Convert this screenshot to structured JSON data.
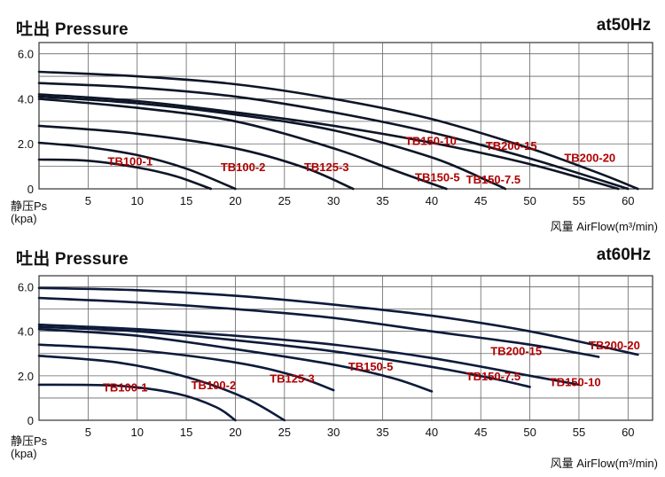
{
  "chart_data": [
    {
      "type": "line",
      "title": "吐出 Pressure",
      "frequency": "at50Hz",
      "ylabel": "静压Ps",
      "yunit": "(kpa)",
      "xlabel": "风量 AirFlow(m³/min)",
      "xlim": [
        0,
        62.5
      ],
      "ylim": [
        0,
        6.5
      ],
      "xticks": [
        5,
        10,
        15,
        20,
        25,
        30,
        35,
        40,
        45,
        50,
        55,
        60
      ],
      "yticks": [
        0,
        2.0,
        4.0,
        6.0
      ],
      "ytick_labels": [
        "0",
        "2.0",
        "4.0",
        "6.0"
      ],
      "grid": true,
      "series": [
        {
          "name": "TB100-1",
          "color": "#0d1526",
          "label_at": [
            7,
            1.2
          ],
          "points": [
            [
              0,
              1.3
            ],
            [
              5,
              1.25
            ],
            [
              10,
              0.95
            ],
            [
              14,
              0.55
            ],
            [
              17.5,
              0
            ]
          ]
        },
        {
          "name": "TB100-2",
          "color": "#0d1526",
          "label_at": [
            18.5,
            0.95
          ],
          "points": [
            [
              0,
              2.05
            ],
            [
              5,
              1.85
            ],
            [
              10,
              1.5
            ],
            [
              15,
              0.9
            ],
            [
              20,
              0
            ]
          ]
        },
        {
          "name": "TB125-3",
          "color": "#0d1526",
          "label_at": [
            27,
            0.95
          ],
          "points": [
            [
              0,
              2.8
            ],
            [
              10,
              2.45
            ],
            [
              20,
              1.8
            ],
            [
              27,
              0.95
            ],
            [
              32,
              0
            ]
          ]
        },
        {
          "name": "TB150-5",
          "color": "#0d1526",
          "label_at": [
            38.3,
            0.5
          ],
          "points": [
            [
              0,
              4.0
            ],
            [
              10,
              3.6
            ],
            [
              20,
              3.0
            ],
            [
              30,
              1.8
            ],
            [
              36,
              0.85
            ],
            [
              41.5,
              0
            ]
          ]
        },
        {
          "name": "TB150-7.5",
          "color": "#0d1526",
          "label_at": [
            43.5,
            0.4
          ],
          "points": [
            [
              0,
              4.1
            ],
            [
              10,
              3.8
            ],
            [
              20,
              3.3
            ],
            [
              30,
              2.6
            ],
            [
              40,
              1.4
            ],
            [
              46,
              0.3
            ],
            [
              47.5,
              0
            ]
          ]
        },
        {
          "name": "TB150-10",
          "color": "#0d1526",
          "label_at": [
            37.3,
            2.1
          ],
          "points": [
            [
              0,
              4.2
            ],
            [
              10,
              3.9
            ],
            [
              20,
              3.4
            ],
            [
              30,
              2.8
            ],
            [
              40,
              2.05
            ],
            [
              50,
              1.1
            ],
            [
              59,
              0
            ]
          ]
        },
        {
          "name": "TB200-15",
          "color": "#0d1526",
          "label_at": [
            45.5,
            1.9
          ],
          "points": [
            [
              0,
              4.7
            ],
            [
              10,
              4.5
            ],
            [
              20,
              4.1
            ],
            [
              30,
              3.4
            ],
            [
              40,
              2.5
            ],
            [
              50,
              1.35
            ],
            [
              60,
              0
            ]
          ]
        },
        {
          "name": "TB200-20",
          "color": "#0d1526",
          "label_at": [
            53.5,
            1.35
          ],
          "points": [
            [
              0,
              5.2
            ],
            [
              10,
              5.0
            ],
            [
              20,
              4.65
            ],
            [
              30,
              4.0
            ],
            [
              40,
              3.1
            ],
            [
              50,
              1.8
            ],
            [
              57,
              0.7
            ],
            [
              61,
              0
            ]
          ]
        }
      ]
    },
    {
      "type": "line",
      "title": "吐出 Pressure",
      "frequency": "at60Hz",
      "ylabel": "静压Ps",
      "yunit": "(kpa)",
      "xlabel": "风量 AirFlow(m³/min)",
      "xlim": [
        0,
        62.5
      ],
      "ylim": [
        0,
        6.5
      ],
      "xticks": [
        5,
        10,
        15,
        20,
        25,
        30,
        35,
        40,
        45,
        50,
        55,
        60
      ],
      "yticks": [
        0,
        2.0,
        4.0,
        6.0
      ],
      "ytick_labels": [
        "0",
        "2.0",
        "4.0",
        "6.0"
      ],
      "grid": true,
      "series": [
        {
          "name": "TB100-1",
          "color": "#0d1a3a",
          "label_at": [
            6.5,
            1.45
          ],
          "points": [
            [
              0,
              1.6
            ],
            [
              8,
              1.55
            ],
            [
              14,
              1.2
            ],
            [
              18,
              0.6
            ],
            [
              20,
              0
            ]
          ]
        },
        {
          "name": "TB100-2",
          "color": "#0d1a3a",
          "label_at": [
            15.5,
            1.55
          ],
          "points": [
            [
              0,
              2.9
            ],
            [
              8,
              2.6
            ],
            [
              15,
              1.95
            ],
            [
              21,
              1.0
            ],
            [
              25,
              0
            ]
          ]
        },
        {
          "name": "TB125-3",
          "color": "#0d1a3a",
          "label_at": [
            23.5,
            1.85
          ],
          "points": [
            [
              0,
              3.4
            ],
            [
              10,
              3.15
            ],
            [
              20,
              2.6
            ],
            [
              26,
              2.0
            ],
            [
              30,
              1.35
            ]
          ]
        },
        {
          "name": "TB150-5",
          "color": "#0d1a3a",
          "label_at": [
            31.5,
            2.4
          ],
          "points": [
            [
              0,
              4.1
            ],
            [
              10,
              3.8
            ],
            [
              20,
              3.2
            ],
            [
              30,
              2.5
            ],
            [
              36,
              1.9
            ],
            [
              40,
              1.3
            ]
          ]
        },
        {
          "name": "TB150-7.5",
          "color": "#0d1a3a",
          "label_at": [
            43.5,
            1.95
          ],
          "points": [
            [
              0,
              4.2
            ],
            [
              10,
              4.0
            ],
            [
              20,
              3.6
            ],
            [
              30,
              3.1
            ],
            [
              40,
              2.4
            ],
            [
              46,
              1.9
            ],
            [
              50,
              1.5
            ]
          ]
        },
        {
          "name": "TB150-10",
          "color": "#0d1a3a",
          "label_at": [
            52,
            1.7
          ],
          "points": [
            [
              0,
              4.3
            ],
            [
              10,
              4.1
            ],
            [
              20,
              3.8
            ],
            [
              30,
              3.4
            ],
            [
              40,
              2.8
            ],
            [
              50,
              2.0
            ],
            [
              55,
              1.6
            ]
          ]
        },
        {
          "name": "TB200-15",
          "color": "#0d1a3a",
          "label_at": [
            46,
            3.1
          ],
          "points": [
            [
              0,
              5.5
            ],
            [
              10,
              5.3
            ],
            [
              20,
              5.0
            ],
            [
              30,
              4.6
            ],
            [
              40,
              4.0
            ],
            [
              50,
              3.4
            ],
            [
              57,
              2.85
            ]
          ]
        },
        {
          "name": "TB200-20",
          "color": "#0d1a3a",
          "label_at": [
            56,
            3.35
          ],
          "points": [
            [
              0,
              5.95
            ],
            [
              10,
              5.85
            ],
            [
              20,
              5.6
            ],
            [
              30,
              5.2
            ],
            [
              40,
              4.7
            ],
            [
              50,
              4.0
            ],
            [
              61,
              2.95
            ]
          ]
        }
      ]
    }
  ]
}
